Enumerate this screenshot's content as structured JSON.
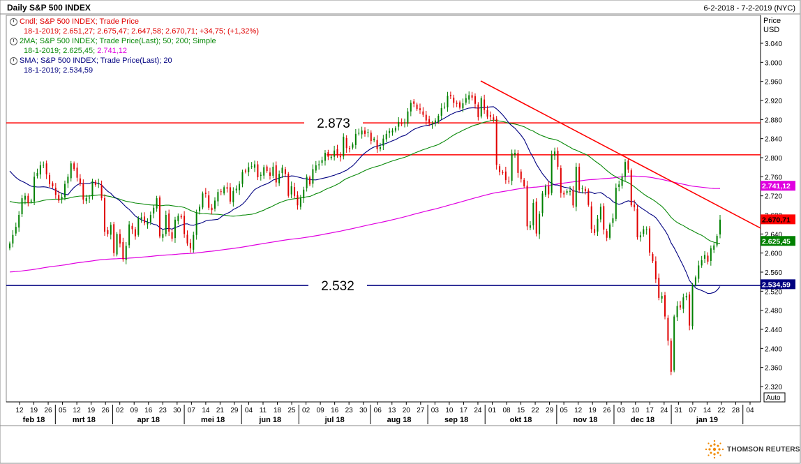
{
  "header": {
    "title": "Daily S&P 500 INDEX",
    "date_range": "6-2-2018 - 7-2-2019 (NYC)"
  },
  "legend": {
    "cndl_line": "Cndl; S&P 500 INDEX; Trade Price",
    "cndl_values": "18-1-2019; 2.651,27; 2.675,47; 2.647,58; 2.670,71; +34,75; (+1,32%)",
    "ma_line": "2MA; S&P 500 INDEX; Trade Price(Last);  50; 200; Simple",
    "ma_values_prefix": "18-1-2019; 2.625,45;",
    "ma_values_suffix": "2.741,12",
    "sma_line": "SMA; S&P 500 INDEX; Trade Price(Last);  20",
    "sma_values": "18-1-2019; 2.534,59"
  },
  "axis": {
    "price_label_line1": "Price",
    "price_label_line2": "USD",
    "auto_button": "Auto"
  },
  "brand": "THOMSON REUTERS",
  "colors": {
    "up": "#008000",
    "down": "#e00000",
    "ma50": "#0b8a0b",
    "ma200": "#e000e0",
    "sma20": "#000080",
    "resistance": "#ff0000",
    "support": "#000080",
    "trendline": "#ff0000"
  },
  "chart_data": {
    "type": "candlestick",
    "title": "Daily S&P 500 INDEX",
    "ylabel": "Price USD",
    "ylim": [
      2320,
      3060
    ],
    "y_ticks": [
      "3.040",
      "3.000",
      "2.960",
      "2.920",
      "2.880",
      "2.840",
      "2.800",
      "2.760",
      "2.720",
      "2.680",
      "2.640",
      "2.600",
      "2.560",
      "2.520",
      "2.480",
      "2.440",
      "2.400",
      "2.360",
      "2.320"
    ],
    "y_tick_values": [
      3040,
      3000,
      2960,
      2920,
      2880,
      2840,
      2800,
      2760,
      2720,
      2680,
      2640,
      2600,
      2560,
      2520,
      2480,
      2440,
      2400,
      2360,
      2320
    ],
    "x_day_ticks": [
      "12",
      "19",
      "26",
      "05",
      "12",
      "19",
      "26",
      "02",
      "09",
      "16",
      "23",
      "30",
      "07",
      "14",
      "21",
      "29",
      "04",
      "11",
      "18",
      "25",
      "02",
      "09",
      "16",
      "23",
      "30",
      "06",
      "13",
      "20",
      "27",
      "03",
      "10",
      "17",
      "24",
      "01",
      "08",
      "15",
      "22",
      "29",
      "05",
      "12",
      "19",
      "26",
      "03",
      "10",
      "17",
      "24",
      "31",
      "07",
      "14",
      "22",
      "28",
      "04"
    ],
    "x_months": [
      "feb 18",
      "mrt 18",
      "apr 18",
      "mei 18",
      "jun 18",
      "jul 18",
      "aug 18",
      "sep 18",
      "okt 18",
      "nov 18",
      "dec 18",
      "jan 19"
    ],
    "horizontal_levels": [
      {
        "value": 2873,
        "label": "2.873",
        "color": "#ff0000"
      },
      {
        "value": 2806,
        "label": "",
        "color": "#ff0000"
      },
      {
        "value": 2532,
        "label": "2.532",
        "color": "#000080"
      }
    ],
    "price_tags": [
      {
        "value": 2741.12,
        "label": "2.741,12",
        "color": "#e000e0"
      },
      {
        "value": 2670.71,
        "label": "2.670,71",
        "color": "#ff0000"
      },
      {
        "value": 2625.45,
        "label": "2.625,45",
        "color": "#008000"
      },
      {
        "value": 2534.59,
        "label": "2.534,59",
        "color": "#000080"
      }
    ],
    "trendline": {
      "start_date": "2018-09-21",
      "start_value": 2961,
      "end_date": "2019-02-07",
      "end_value": 2664
    },
    "series": [
      {
        "name": "Cndl",
        "type": "candles",
        "closes": [
          2620,
          2638,
          2655,
          2680,
          2715,
          2720,
          2705,
          2710,
          2760,
          2768,
          2784,
          2785,
          2765,
          2745,
          2740,
          2722,
          2710,
          2718,
          2745,
          2760,
          2788,
          2776,
          2758,
          2745,
          2712,
          2715,
          2716,
          2751,
          2743,
          2746,
          2715,
          2645,
          2640,
          2659,
          2600,
          2640,
          2620,
          2587,
          2615,
          2660,
          2650,
          2635,
          2673,
          2675,
          2663,
          2665,
          2680,
          2695,
          2715,
          2635,
          2640,
          2680,
          2645,
          2630,
          2670,
          2678,
          2675,
          2640,
          2620,
          2610,
          2638,
          2685,
          2697,
          2725,
          2724,
          2695,
          2690,
          2710,
          2728,
          2728,
          2738,
          2735,
          2708,
          2730,
          2735,
          2745,
          2770,
          2771,
          2780,
          2782,
          2786,
          2759,
          2764,
          2780,
          2772,
          2762,
          2781,
          2748,
          2766,
          2779,
          2766,
          2720,
          2740,
          2720,
          2700,
          2715,
          2733,
          2760,
          2744,
          2776,
          2784,
          2786,
          2795,
          2810,
          2802,
          2802,
          2815,
          2805,
          2801,
          2844,
          2820,
          2818,
          2828,
          2850,
          2852,
          2857,
          2850,
          2854,
          2835,
          2840,
          2818,
          2822,
          2840,
          2850,
          2856,
          2857,
          2862,
          2875,
          2871,
          2874,
          2897,
          2915,
          2913,
          2902,
          2900,
          2890,
          2878,
          2872,
          2871,
          2878,
          2888,
          2904,
          2907,
          2930,
          2929,
          2915,
          2913,
          2905,
          2914,
          2925,
          2931,
          2926,
          2913,
          2885,
          2925,
          2900,
          2886,
          2886,
          2880,
          2785,
          2770,
          2768,
          2753,
          2750,
          2809,
          2810,
          2768,
          2755,
          2740,
          2656,
          2658,
          2705,
          2641,
          2682,
          2725,
          2740,
          2723,
          2806,
          2813,
          2781,
          2726,
          2723,
          2730,
          2730,
          2700,
          2781,
          2732,
          2736,
          2730,
          2701,
          2650,
          2642,
          2672,
          2697,
          2649,
          2632,
          2660,
          2673,
          2737,
          2744,
          2760,
          2791,
          2775,
          2700,
          2696,
          2633,
          2637,
          2650,
          2650,
          2601,
          2583,
          2545,
          2506,
          2510,
          2467,
          2416,
          2351,
          2467,
          2489,
          2486,
          2507,
          2510,
          2448,
          2532,
          2549,
          2574,
          2585,
          2596,
          2582,
          2610,
          2616,
          2636,
          2670
        ]
      },
      {
        "name": "MA 50",
        "type": "line",
        "note": "50-day simple moving average"
      },
      {
        "name": "MA 200",
        "type": "line",
        "note": "200-day simple moving average"
      },
      {
        "name": "SMA 20",
        "type": "line",
        "note": "20-day simple moving average"
      }
    ],
    "grid": false,
    "legend_position": "top-left"
  }
}
